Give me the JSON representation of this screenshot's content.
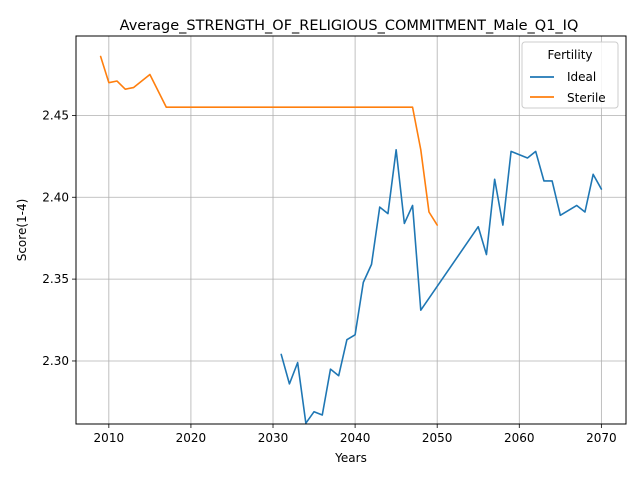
{
  "chart_data": {
    "type": "line",
    "title": "Average_STRENGTH_OF_RELIGIOUS_COMMITMENT_Male_Q1_IQ",
    "xlabel": "Years",
    "ylabel": "Score(1-4)",
    "xlim": [
      2006,
      2073
    ],
    "ylim": [
      2.2615,
      2.4985
    ],
    "xticks": [
      2010,
      2020,
      2030,
      2040,
      2050,
      2060,
      2070
    ],
    "yticks": [
      2.3,
      2.35,
      2.4,
      2.45
    ],
    "xtick_labels": [
      "2010",
      "2020",
      "2030",
      "2040",
      "2050",
      "2060",
      "2070"
    ],
    "ytick_labels": [
      "2.30",
      "2.35",
      "2.40",
      "2.45"
    ],
    "grid": true,
    "legend": {
      "title": "Fertility",
      "placement": "top-right"
    },
    "series": [
      {
        "name": "Ideal",
        "color": "#1f77b4",
        "points": [
          [
            2031,
            2.304
          ],
          [
            2032,
            2.286
          ],
          [
            2033,
            2.299
          ],
          [
            2034,
            2.262
          ],
          [
            2035,
            2.269
          ],
          [
            2036,
            2.267
          ],
          [
            2037,
            2.295
          ],
          [
            2038,
            2.291
          ],
          [
            2039,
            2.313
          ],
          [
            2040,
            2.316
          ],
          [
            2041,
            2.348
          ],
          [
            2042,
            2.359
          ],
          [
            2043,
            2.394
          ],
          [
            2044,
            2.39
          ],
          [
            2045,
            2.429
          ],
          [
            2046,
            2.384
          ],
          [
            2047,
            2.395
          ],
          [
            2048,
            2.331
          ],
          [
            2055,
            2.382
          ],
          [
            2056,
            2.365
          ],
          [
            2057,
            2.411
          ],
          [
            2058,
            2.383
          ],
          [
            2059,
            2.428
          ],
          [
            2061,
            2.424
          ],
          [
            2062,
            2.428
          ],
          [
            2063,
            2.41
          ],
          [
            2064,
            2.41
          ],
          [
            2065,
            2.389
          ],
          [
            2067,
            2.395
          ],
          [
            2068,
            2.391
          ],
          [
            2069,
            2.414
          ],
          [
            2070,
            2.405
          ]
        ]
      },
      {
        "name": "Sterile",
        "color": "#ff7f0e",
        "points": [
          [
            2009,
            2.486
          ],
          [
            2010,
            2.47
          ],
          [
            2011,
            2.471
          ],
          [
            2012,
            2.466
          ],
          [
            2013,
            2.467
          ],
          [
            2015,
            2.475
          ],
          [
            2017,
            2.455
          ],
          [
            2047,
            2.455
          ],
          [
            2048,
            2.429
          ],
          [
            2049,
            2.391
          ],
          [
            2050,
            2.383
          ]
        ]
      }
    ]
  }
}
